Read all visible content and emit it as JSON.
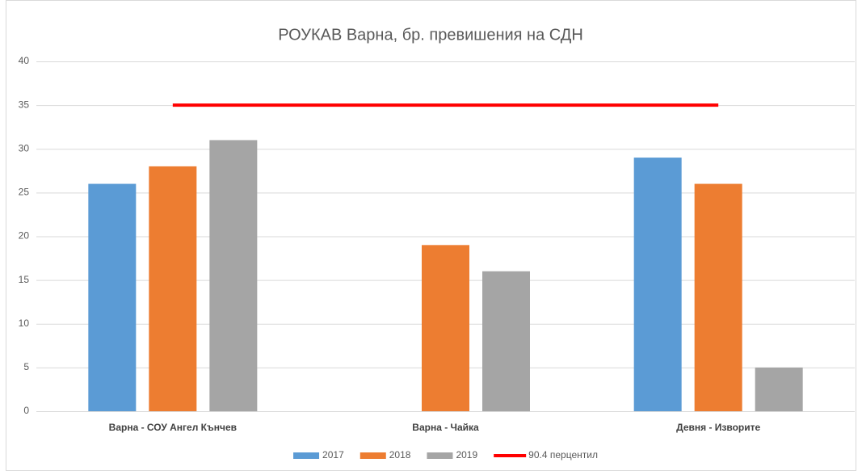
{
  "chart_data": {
    "type": "bar",
    "title": "РОУКАВ Варна, бр. превишения на СДН",
    "categories": [
      "Варна - СОУ Ангел Кънчев",
      "Варна - Чайка",
      "Девня - Изворите"
    ],
    "series": [
      {
        "name": "2017",
        "color": "#5b9bd5",
        "values": [
          26,
          null,
          29
        ]
      },
      {
        "name": "2018",
        "color": "#ed7d31",
        "values": [
          28,
          19,
          26
        ]
      },
      {
        "name": "2019",
        "color": "#a5a5a5",
        "values": [
          31,
          16,
          5
        ]
      },
      {
        "name": "90.4 перцентил",
        "color": "#ff0000",
        "type": "line",
        "values": [
          35,
          35,
          35
        ]
      }
    ],
    "ylim": [
      0,
      40
    ],
    "yticks": [
      0,
      5,
      10,
      15,
      20,
      25,
      30,
      35,
      40
    ],
    "grid": true,
    "legend": "bottom"
  }
}
